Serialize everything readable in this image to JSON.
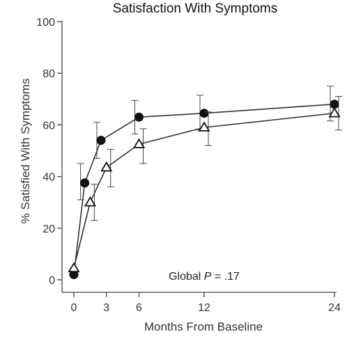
{
  "chart_data": {
    "type": "line",
    "title": "Satisfaction With Symptoms",
    "xlabel": "Months From Baseline",
    "ylabel": "% Satisfied With Symptoms",
    "ylim": [
      0,
      100
    ],
    "yticks": [
      0,
      20,
      40,
      60,
      80,
      100
    ],
    "xticks": [
      0,
      3,
      6,
      12,
      24
    ],
    "grid": false,
    "annotation": {
      "prefix": "Global ",
      "italic": "P",
      "suffix": " = .17"
    },
    "series": [
      {
        "marker": "filled-circle",
        "x": [
          0,
          1,
          2.5,
          6,
          12,
          24
        ],
        "values": [
          2,
          37.5,
          54,
          63,
          64.5,
          68
        ],
        "error_low": [
          null,
          31,
          47,
          56.5,
          58,
          61.5
        ],
        "error_high": [
          null,
          45,
          61,
          69.5,
          71.5,
          75
        ]
      },
      {
        "marker": "open-triangle",
        "x": [
          0,
          1.5,
          3,
          6,
          12,
          24
        ],
        "values": [
          4.5,
          30,
          43.5,
          52.5,
          59,
          64.5
        ],
        "error_low": [
          null,
          23,
          36,
          45,
          52,
          58
        ],
        "error_high": [
          null,
          37,
          50.5,
          58.5,
          65,
          71
        ]
      }
    ]
  }
}
